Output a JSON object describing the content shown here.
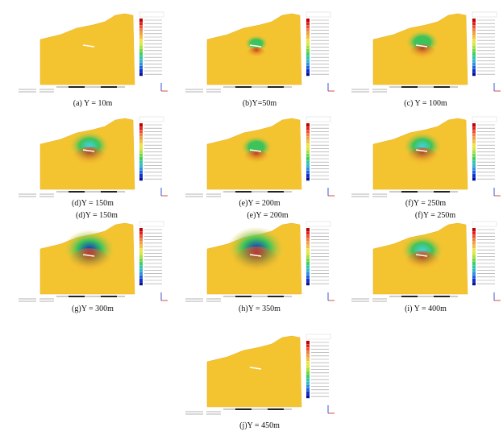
{
  "figure": {
    "panels": [
      {
        "caption": "(a) Y = 10m",
        "intensity": 0.0
      },
      {
        "caption": "(b)Y=50m",
        "intensity": 0.08
      },
      {
        "caption": "(c) Y = 100m",
        "intensity": 0.35
      },
      {
        "caption": "(d)Y = 150m",
        "intensity": 0.55
      },
      {
        "caption": "(e)Y = 200m",
        "intensity": 0.3
      },
      {
        "caption": "(f)Y = 250m",
        "intensity": 0.5
      },
      {
        "caption": "(g)Y = 300m",
        "intensity": 0.85
      },
      {
        "caption": "(h)Y = 350m",
        "intensity": 1.0
      },
      {
        "caption": "(i) Y = 400m",
        "intensity": 0.6
      },
      {
        "caption": "(j)Y = 450m",
        "intensity": 0.0
      }
    ],
    "overlap_captions": [
      "(d)Y = 150m",
      "(e)Y = 200m",
      "(f)Y = 250m"
    ],
    "colors": {
      "field": "#f4c430",
      "field_edge": "#e8b020",
      "tunnel_red": "#d03018",
      "green": "#3cc45a",
      "cyan": "#40d0e8",
      "blue": "#1030c8"
    },
    "legend_colors": [
      "#c00000",
      "#e02020",
      "#f05030",
      "#f08040",
      "#f0a040",
      "#f0c040",
      "#f4e040",
      "#d8e840",
      "#a8e040",
      "#70d840",
      "#40d060",
      "#30c8a0",
      "#30b8d0",
      "#3090e0",
      "#2060e0",
      "#1030c8",
      "#0010a0"
    ]
  }
}
